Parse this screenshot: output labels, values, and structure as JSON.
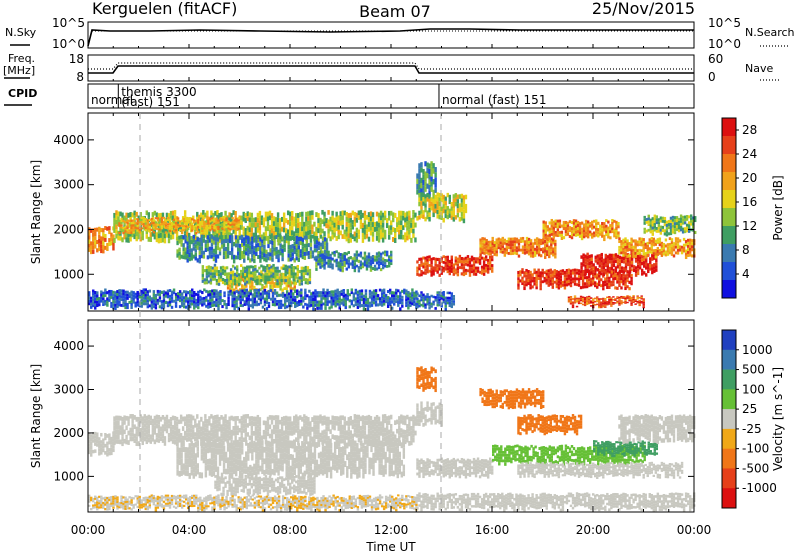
{
  "header": {
    "station": "Kerguelen (fitACF)",
    "beam": "Beam 07",
    "date": "25/Nov/2015"
  },
  "strip_labels": {
    "nsky": "N.Sky",
    "nsearch": "N.Search",
    "freq": "Freq.",
    "freq_unit": "[MHz]",
    "nave": "Nave",
    "cpid": "CPID"
  },
  "strip_ticks": {
    "noise_left": [
      "10^5",
      "10^0"
    ],
    "noise_right": [
      "10^5",
      "10^0"
    ],
    "freq_left": [
      "18",
      "8"
    ],
    "nave_right": [
      "60",
      "0"
    ]
  },
  "modes": [
    {
      "t0": 0,
      "t1": 1.2,
      "text": "normal",
      "text2": ""
    },
    {
      "t0": 1.2,
      "t1": 13.9,
      "text": "themis 3300",
      "text2": "(fast) 151"
    },
    {
      "t0": 13.9,
      "t1": 24,
      "text": "normal (fast) 151",
      "text2": ""
    }
  ],
  "chart_data": [
    {
      "type": "heatmap",
      "panel": "power",
      "xlabel": "Time UT",
      "ylabel": "Slant Range [km]",
      "xlim": [
        0,
        24
      ],
      "ylim": [
        180,
        4600
      ],
      "x_ticks": [
        "00:00",
        "04:00",
        "08:00",
        "12:00",
        "16:00",
        "20:00",
        "00:00"
      ],
      "y_ticks": [
        1000,
        2000,
        3000,
        4000
      ],
      "colorbar_label": "Power [dB]",
      "colorbar_ticks": [
        4,
        8,
        12,
        16,
        20,
        24,
        28
      ],
      "colorbar_colors": [
        "#1010e0",
        "#2050d8",
        "#3a7ab0",
        "#3f9e62",
        "#8ec43a",
        "#e6d21a",
        "#f1a21b",
        "#f07618",
        "#e6401a",
        "#dc1010"
      ],
      "bands": [
        {
          "t0": 0.0,
          "t1": 1.0,
          "r0": 1500,
          "r1": 2050,
          "v": 22
        },
        {
          "t0": 1.0,
          "t1": 13.0,
          "r0": 1750,
          "r1": 2400,
          "v": 14
        },
        {
          "t0": 1.2,
          "t1": 6.0,
          "r0": 1950,
          "r1": 2250,
          "v": 19
        },
        {
          "t0": 3.5,
          "t1": 9.5,
          "r0": 1300,
          "r1": 1850,
          "v": 9
        },
        {
          "t0": 5.5,
          "t1": 8.2,
          "r0": 600,
          "r1": 1000,
          "v": 17
        },
        {
          "t0": 4.5,
          "t1": 8.8,
          "r0": 800,
          "r1": 1200,
          "v": 12
        },
        {
          "t0": 9.0,
          "t1": 12.0,
          "r0": 1100,
          "r1": 1500,
          "v": 8
        },
        {
          "t0": 0.0,
          "t1": 13.0,
          "r0": 250,
          "r1": 650,
          "v": 6
        },
        {
          "t0": 13.0,
          "t1": 13.8,
          "r0": 2800,
          "r1": 3500,
          "v": 9
        },
        {
          "t0": 13.0,
          "t1": 15.0,
          "r0": 2200,
          "r1": 2800,
          "v": 15
        },
        {
          "t0": 13.0,
          "t1": 16.0,
          "r0": 1000,
          "r1": 1400,
          "v": 26
        },
        {
          "t0": 15.5,
          "t1": 18.5,
          "r0": 1400,
          "r1": 1800,
          "v": 22
        },
        {
          "t0": 18.0,
          "t1": 21.0,
          "r0": 1800,
          "r1": 2200,
          "v": 21
        },
        {
          "t0": 17.0,
          "t1": 21.5,
          "r0": 700,
          "r1": 1100,
          "v": 27
        },
        {
          "t0": 19.5,
          "t1": 22.5,
          "r0": 1000,
          "r1": 1450,
          "v": 28
        },
        {
          "t0": 21.0,
          "t1": 24.0,
          "r0": 1400,
          "r1": 1800,
          "v": 20
        },
        {
          "t0": 22.0,
          "t1": 24.0,
          "r0": 1900,
          "r1": 2300,
          "v": 13
        },
        {
          "t0": 19.0,
          "t1": 22.0,
          "r0": 300,
          "r1": 500,
          "v": 25
        },
        {
          "t0": 13.0,
          "t1": 14.5,
          "r0": 250,
          "r1": 600,
          "v": 6
        }
      ]
    },
    {
      "type": "heatmap",
      "panel": "velocity",
      "xlabel": "Time UT",
      "ylabel": "Slant Range [km]",
      "xlim": [
        0,
        24
      ],
      "ylim": [
        180,
        4600
      ],
      "x_ticks": [
        "00:00",
        "04:00",
        "08:00",
        "12:00",
        "16:00",
        "20:00",
        "00:00"
      ],
      "y_ticks": [
        1000,
        2000,
        3000,
        4000
      ],
      "colorbar_label": "Velocity [m s^-1]",
      "colorbar_ticks": [
        1000,
        500,
        100,
        25,
        -25,
        -100,
        -500,
        -1000
      ],
      "colorbar_colors": [
        "#2040c0",
        "#3a7ab0",
        "#3f9e62",
        "#66c036",
        "#c8c8c0",
        "#f0a818",
        "#f07618",
        "#e6401a",
        "#dc1010"
      ],
      "bands": [
        {
          "t0": 0.0,
          "t1": 1.0,
          "r0": 1500,
          "r1": 2000,
          "v": 0
        },
        {
          "t0": 1.0,
          "t1": 13.0,
          "r0": 1750,
          "r1": 2400,
          "v": 0
        },
        {
          "t0": 3.5,
          "t1": 12.5,
          "r0": 1000,
          "r1": 1800,
          "v": 0
        },
        {
          "t0": 5.0,
          "t1": 9.0,
          "r0": 600,
          "r1": 1000,
          "v": 0
        },
        {
          "t0": 0.0,
          "t1": 13.0,
          "r0": 250,
          "r1": 550,
          "v": -20
        },
        {
          "t0": 13.0,
          "t1": 16.0,
          "r0": 1000,
          "r1": 1400,
          "v": 0
        },
        {
          "t0": 13.0,
          "t1": 14.0,
          "r0": 2200,
          "r1": 2700,
          "v": 0
        },
        {
          "t0": 13.0,
          "t1": 13.8,
          "r0": 3000,
          "r1": 3500,
          "v": -120
        },
        {
          "t0": 15.5,
          "t1": 18.0,
          "r0": 2600,
          "r1": 3000,
          "v": -300
        },
        {
          "t0": 17.0,
          "t1": 19.5,
          "r0": 2000,
          "r1": 2400,
          "v": -150
        },
        {
          "t0": 16.0,
          "t1": 22.0,
          "r0": 1300,
          "r1": 1700,
          "v": 80
        },
        {
          "t0": 20.0,
          "t1": 22.5,
          "r0": 1500,
          "r1": 1800,
          "v": 400
        },
        {
          "t0": 17.0,
          "t1": 23.5,
          "r0": 1000,
          "r1": 1300,
          "v": 0
        },
        {
          "t0": 21.0,
          "t1": 24.0,
          "r0": 1800,
          "r1": 2400,
          "v": 0
        },
        {
          "t0": 13.0,
          "t1": 24.0,
          "r0": 250,
          "r1": 600,
          "v": 0
        }
      ]
    }
  ]
}
